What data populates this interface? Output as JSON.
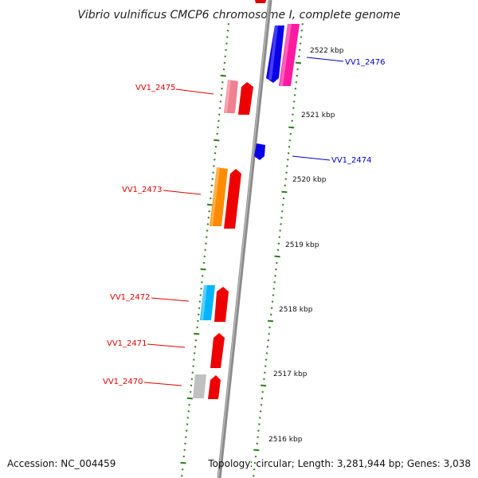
{
  "title": "Vibrio vulnificus CMCP6 chromosome I, complete genome",
  "accession": "Accession: NC_004459",
  "topology": "Topology: circular; Length: 3,281,944 bp; Genes: 3,038",
  "colors": {
    "backbone": "#888888",
    "tick": "#2e7d1e",
    "label_red": "#e00000",
    "label_blue": "#0000cc"
  },
  "scale_labels": [
    "2522 kbp",
    "2521 kbp",
    "2520 kbp",
    "2519 kbp",
    "2518 kbp",
    "2517 kbp",
    "2516 kbp"
  ],
  "gene_labels": [
    {
      "text": "VV1_2476",
      "strand": "right"
    },
    {
      "text": "VV1_2475",
      "strand": "left"
    },
    {
      "text": "VV1_2474",
      "strand": "right"
    },
    {
      "text": "VV1_2473",
      "strand": "left"
    },
    {
      "text": "VV1_2472",
      "strand": "left"
    },
    {
      "text": "VV1_2471",
      "strand": "left"
    },
    {
      "text": "VV1_2470",
      "strand": "left"
    }
  ]
}
